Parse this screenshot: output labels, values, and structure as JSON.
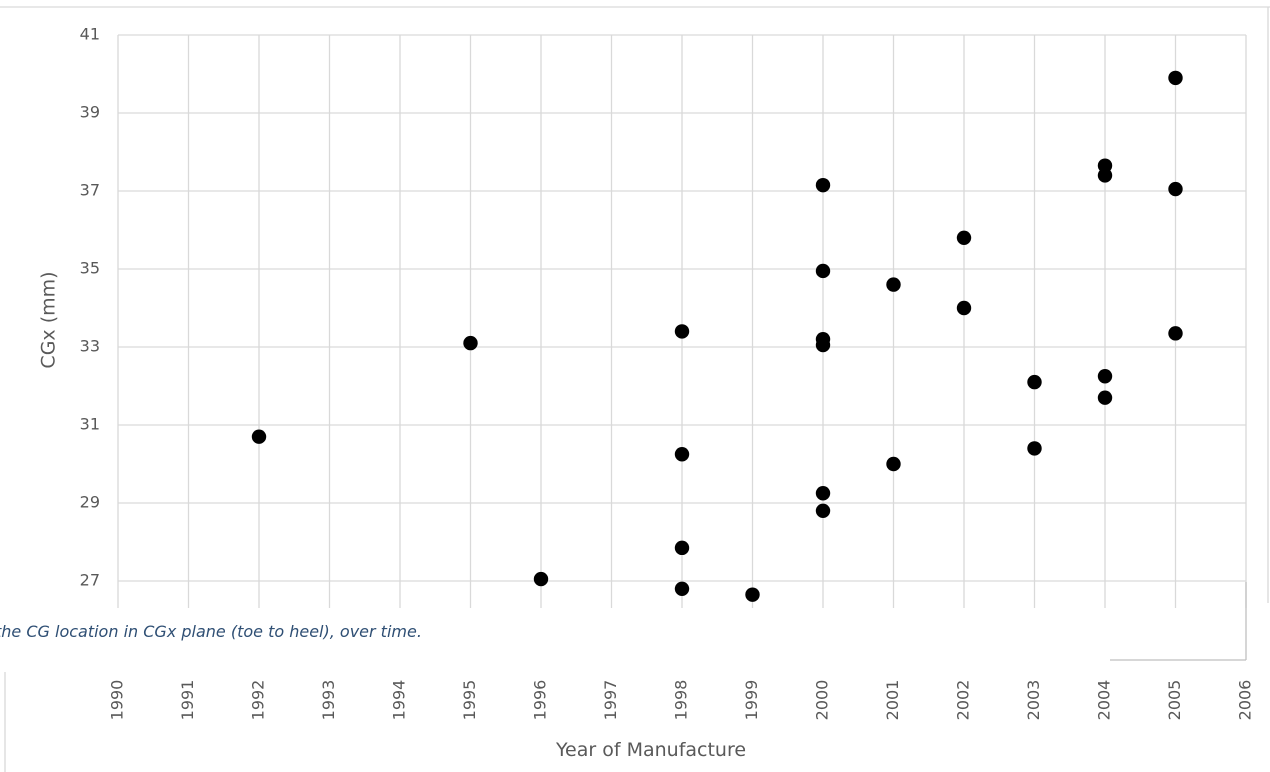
{
  "caption": "the CG location in CGx plane (toe to heel), over time.",
  "chart_data": {
    "type": "scatter",
    "title": "",
    "xlabel": "Year of Manufacture",
    "ylabel": "CGx (mm)",
    "xlim": [
      1990,
      2006
    ],
    "ylim": [
      26,
      41
    ],
    "x_ticks": [
      "1990",
      "1991",
      "1992",
      "1993",
      "1994",
      "1995",
      "1996",
      "1997",
      "1998",
      "1999",
      "2000",
      "2001",
      "2002",
      "2003",
      "2004",
      "2005",
      "2006"
    ],
    "y_ticks": [
      "27",
      "29",
      "31",
      "33",
      "35",
      "37",
      "39",
      "41"
    ],
    "grid": true,
    "legend": "none",
    "marker_color": "#000000",
    "points": [
      {
        "x": 1992,
        "y": 30.7
      },
      {
        "x": 1995,
        "y": 33.1
      },
      {
        "x": 1996,
        "y": 27.05
      },
      {
        "x": 1998,
        "y": 33.4
      },
      {
        "x": 1998,
        "y": 30.25
      },
      {
        "x": 1998,
        "y": 27.85
      },
      {
        "x": 1998,
        "y": 26.8
      },
      {
        "x": 1999,
        "y": 26.65
      },
      {
        "x": 2000,
        "y": 37.15
      },
      {
        "x": 2000,
        "y": 34.95
      },
      {
        "x": 2000,
        "y": 33.2
      },
      {
        "x": 2000,
        "y": 33.05
      },
      {
        "x": 2000,
        "y": 29.25
      },
      {
        "x": 2000,
        "y": 28.8
      },
      {
        "x": 2001,
        "y": 34.6
      },
      {
        "x": 2001,
        "y": 30.0
      },
      {
        "x": 2002,
        "y": 35.8
      },
      {
        "x": 2002,
        "y": 34.0
      },
      {
        "x": 2003,
        "y": 32.1
      },
      {
        "x": 2003,
        "y": 30.4
      },
      {
        "x": 2004,
        "y": 37.65
      },
      {
        "x": 2004,
        "y": 37.4
      },
      {
        "x": 2004,
        "y": 32.25
      },
      {
        "x": 2004,
        "y": 31.7
      },
      {
        "x": 2005,
        "y": 39.9
      },
      {
        "x": 2005,
        "y": 37.05
      },
      {
        "x": 2005,
        "y": 33.35
      }
    ]
  }
}
